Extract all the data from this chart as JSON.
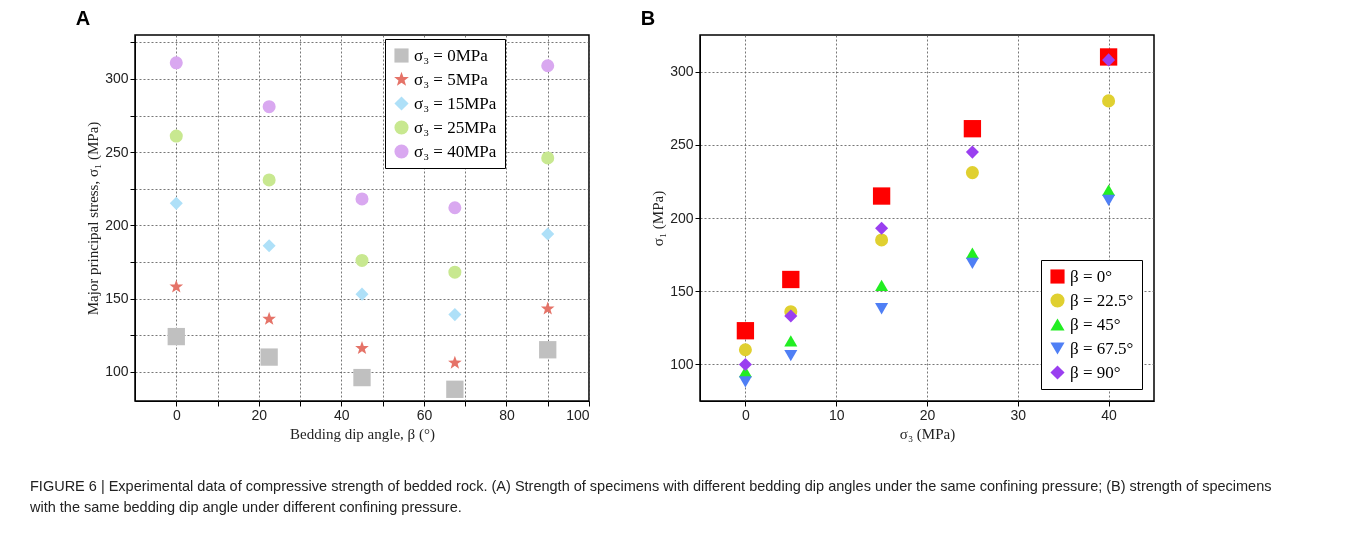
{
  "chart_data": [
    {
      "type": "scatter",
      "title": "A",
      "xlabel": "Bedding dip angle, β (°)",
      "ylabel": "Major principal stress, σ₁ (MPa)",
      "x": [
        0,
        22.5,
        45,
        67.5,
        90
      ],
      "xlim": [
        -10,
        100
      ],
      "xticks": [
        0,
        {
          "value": 10,
          "label": null
        },
        20,
        {
          "value": 30,
          "label": null
        },
        40,
        {
          "value": 50,
          "label": null
        },
        60,
        {
          "value": 70,
          "label": null
        },
        80,
        {
          "value": 90,
          "label": null
        },
        100
      ],
      "ylim": [
        80,
        330
      ],
      "yticks": [
        100,
        {
          "value": 125,
          "label": null
        },
        150,
        {
          "value": 175,
          "label": null
        },
        200,
        {
          "value": 225,
          "label": null
        },
        250,
        {
          "value": 275,
          "label": null
        },
        300,
        {
          "value": 325,
          "label": null
        }
      ],
      "grid": true,
      "legend": "top right",
      "series": [
        {
          "name": "σ₃ = 0MPa",
          "color": "#c0c0c0",
          "marker": "square",
          "values": [
            124,
            110,
            96,
            88,
            115
          ]
        },
        {
          "name": "σ₃ = 5MPa",
          "color": "#e57368",
          "marker": "star",
          "values": [
            158,
            136,
            116,
            106,
            143
          ]
        },
        {
          "name": "σ₃ = 15MPa",
          "color": "#aee0f8",
          "marker": "diamond",
          "values": [
            215,
            186,
            153,
            139,
            194
          ]
        },
        {
          "name": "σ₃ = 25MPa",
          "color": "#c8e890",
          "marker": "circle",
          "values": [
            261,
            231,
            176,
            168,
            246
          ]
        },
        {
          "name": "σ₃ = 40MPa",
          "color": "#d9a8f0",
          "marker": "circle",
          "values": [
            311,
            281,
            218,
            212,
            309
          ]
        }
      ]
    },
    {
      "type": "scatter",
      "title": "B",
      "xlabel": "σ₃ (MPa)",
      "ylabel": "σ₁ (MPa)",
      "x": [
        0,
        5,
        15,
        25,
        40
      ],
      "xlim": [
        -5,
        45
      ],
      "xticks": [
        0,
        10,
        20,
        30,
        40
      ],
      "ylim": [
        75,
        325
      ],
      "yticks": [
        100,
        150,
        200,
        250,
        300
      ],
      "grid": true,
      "legend": "bottom right",
      "annotations": [
        "FIGURE 6 | Experimental data of compressive strength of bedded rock. (A) Strength of specimens with different bedding dip angles under the same confining pressure; (B) strength of specimens with the same bedding dip angle under different confining pressure."
      ],
      "series": [
        {
          "name": "β = 0°",
          "color": "#ff0000",
          "marker": "square",
          "values": [
            123,
            158,
            215,
            261,
            310
          ]
        },
        {
          "name": "β = 22.5°",
          "color": "#e0d030",
          "marker": "circle",
          "values": [
            110,
            136,
            185,
            231,
            280
          ]
        },
        {
          "name": "β = 45°",
          "color": "#22ee22",
          "marker": "triangle",
          "values": [
            95,
            116,
            154,
            176,
            219
          ]
        },
        {
          "name": "β = 67.5°",
          "color": "#4f7ff5",
          "marker": "triangle-down",
          "values": [
            88,
            106,
            138,
            169,
            212
          ]
        },
        {
          "name": "β = 90°",
          "color": "#9a3ff0",
          "marker": "diamond",
          "values": [
            100,
            133,
            193,
            245,
            308
          ]
        }
      ]
    }
  ]
}
